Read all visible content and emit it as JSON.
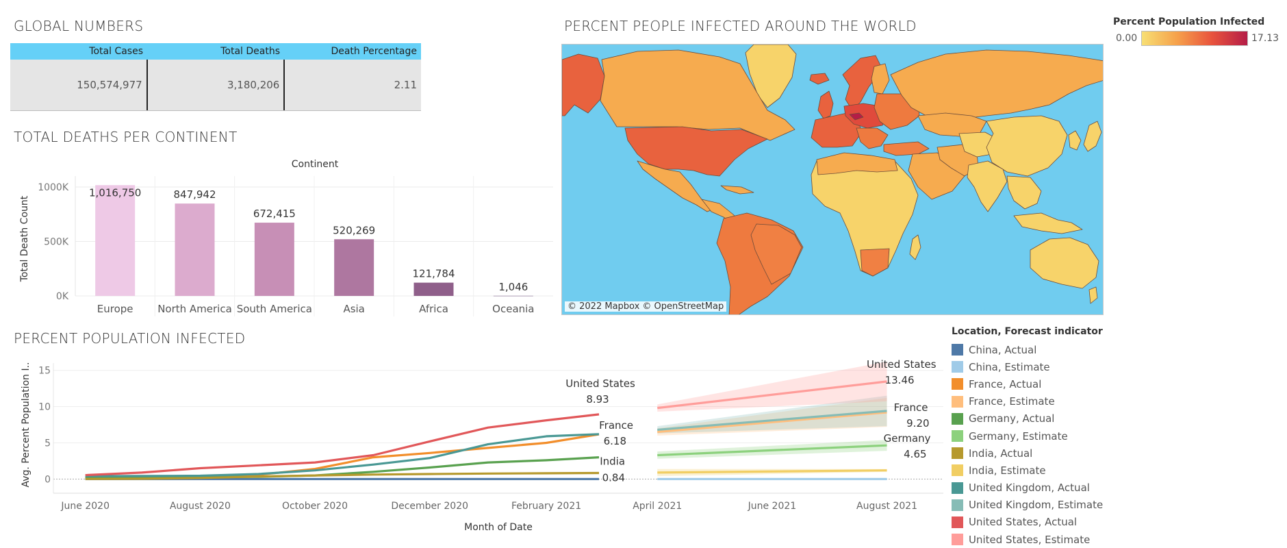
{
  "global": {
    "title": "GLOBAL NUMBERS",
    "headers": [
      "Total Cases",
      "Total Deaths",
      "Death Percentage"
    ],
    "values": [
      "150,574,977",
      "3,180,206",
      "2.11"
    ]
  },
  "deaths_title": "TOTAL DEATHS PER CONTINENT",
  "ppi_title": "PERCENT POPULATION INFECTED",
  "world": {
    "title": "PERCENT PEOPLE INFECTED AROUND THE WORLD",
    "attribution": "© 2022 Mapbox © OpenStreetMap",
    "legend_title": "Percent Population Infected",
    "legend_min": "0.00",
    "legend_max": "17.13",
    "colors": {
      "ocean": "#70ccef",
      "low": "#f7df74",
      "mid": "#f6a14b",
      "high": "#e8533d",
      "max": "#b51d47"
    }
  },
  "chart_data": [
    {
      "type": "bar",
      "title": "",
      "column_header": "Continent",
      "ylabel": "Total Death Count",
      "categories": [
        "Europe",
        "North America",
        "South America",
        "Asia",
        "Africa",
        "Oceania"
      ],
      "values": [
        1016750,
        847942,
        672415,
        520269,
        121784,
        1046
      ],
      "labels": [
        "1,016,750",
        "847,942",
        "672,415",
        "520,269",
        "121,784",
        "1,046"
      ],
      "colors": [
        "#eec9e6",
        "#dcabce",
        "#c78fb6",
        "#ae77a0",
        "#8f5f8a",
        "#6f4f7c"
      ],
      "ylim": [
        0,
        1050000
      ],
      "yticks": [
        {
          "v": 0,
          "t": "0K"
        },
        {
          "v": 500000,
          "t": "500K"
        },
        {
          "v": 1000000,
          "t": "1000K"
        }
      ],
      "grid": true
    },
    {
      "type": "line",
      "title": "",
      "xlabel": "Month of Date",
      "ylabel": "Avg. Percent Population I..",
      "xlim": [
        "2020-05-15",
        "2021-08-31"
      ],
      "ylim": [
        -1,
        16
      ],
      "yticks": [
        0,
        5,
        10,
        15
      ],
      "xticks": [
        {
          "d": "2020-06-01",
          "t": "June 2020"
        },
        {
          "d": "2020-08-01",
          "t": "August 2020"
        },
        {
          "d": "2020-10-01",
          "t": "October 2020"
        },
        {
          "d": "2020-12-01",
          "t": "December 2020"
        },
        {
          "d": "2021-02-01",
          "t": "February 2021"
        },
        {
          "d": "2021-04-01",
          "t": "April 2021"
        },
        {
          "d": "2021-06-01",
          "t": "June 2021"
        },
        {
          "d": "2021-08-01",
          "t": "August 2021"
        }
      ],
      "x": [
        "2020-06-01",
        "2020-07-01",
        "2020-08-01",
        "2020-09-01",
        "2020-10-01",
        "2020-11-01",
        "2020-12-01",
        "2021-01-01",
        "2021-02-01",
        "2021-03-01"
      ],
      "series": [
        {
          "name": "China, Actual",
          "color": "#4e79a7",
          "values": [
            0.01,
            0.01,
            0.01,
            0.01,
            0.01,
            0.01,
            0.01,
            0.01,
            0.01,
            0.01
          ]
        },
        {
          "name": "France, Actual",
          "color": "#f28e2b",
          "values": [
            0.25,
            0.28,
            0.35,
            0.6,
            1.4,
            3.0,
            3.6,
            4.3,
            5.0,
            6.18
          ]
        },
        {
          "name": "Germany, Actual",
          "color": "#59a14f",
          "values": [
            0.22,
            0.24,
            0.27,
            0.32,
            0.5,
            1.0,
            1.6,
            2.3,
            2.6,
            3.0
          ]
        },
        {
          "name": "India, Actual",
          "color": "#b6992d",
          "values": [
            0.02,
            0.05,
            0.15,
            0.35,
            0.5,
            0.62,
            0.7,
            0.77,
            0.8,
            0.84
          ]
        },
        {
          "name": "United Kingdom, Actual",
          "color": "#499894",
          "values": [
            0.41,
            0.43,
            0.46,
            0.7,
            1.2,
            2.0,
            2.9,
            4.8,
            5.9,
            6.2
          ]
        },
        {
          "name": "United States, Actual",
          "color": "#e15759",
          "values": [
            0.55,
            0.9,
            1.5,
            1.9,
            2.3,
            3.3,
            5.2,
            7.1,
            8.1,
            8.93
          ]
        }
      ],
      "forecast_x": [
        "2021-04-01",
        "2021-08-01"
      ],
      "forecasts": [
        {
          "name": "China, Estimate",
          "color": "#a0cbe8",
          "start": 0.01,
          "end": 0.01,
          "lo_end": 0.01,
          "hi_end": 0.01
        },
        {
          "name": "France, Estimate",
          "color": "#ffbe7d",
          "start": 6.5,
          "end": 9.2,
          "lo_end": 7.2,
          "hi_end": 11.2
        },
        {
          "name": "Germany, Estimate",
          "color": "#8cd17d",
          "start": 3.3,
          "end": 4.65,
          "lo_end": 3.9,
          "hi_end": 5.4
        },
        {
          "name": "India, Estimate",
          "color": "#f1ce63",
          "start": 0.9,
          "end": 1.2,
          "lo_end": 1.0,
          "hi_end": 1.4
        },
        {
          "name": "United Kingdom, Estimate",
          "color": "#86bcb6",
          "start": 6.8,
          "end": 9.4,
          "lo_end": 7.4,
          "hi_end": 11.5
        },
        {
          "name": "United States, Estimate",
          "color": "#ff9d9a",
          "start": 9.8,
          "end": 13.46,
          "lo_end": 11.0,
          "hi_end": 16.2
        }
      ],
      "labels": [
        {
          "name": "United States",
          "value": "8.93",
          "d": "2021-03-01",
          "y": 8.93
        },
        {
          "name": "France",
          "value": "6.18",
          "d": "2021-03-01",
          "y": 6.18
        },
        {
          "name": "India",
          "value": "0.84",
          "d": "2021-03-01",
          "y": 0.84
        },
        {
          "name": "United States",
          "value": "13.46",
          "d": "2021-08-01",
          "y": 13.46
        },
        {
          "name": "France",
          "value": "9.20",
          "d": "2021-08-01",
          "y": 9.2
        },
        {
          "name": "Germany",
          "value": "4.65",
          "d": "2021-08-01",
          "y": 4.65
        }
      ],
      "legend": {
        "title": "Location, Forecast indicator",
        "items": [
          {
            "label": "China, Actual",
            "color": "#4e79a7"
          },
          {
            "label": "China, Estimate",
            "color": "#a0cbe8"
          },
          {
            "label": "France, Actual",
            "color": "#f28e2b"
          },
          {
            "label": "France, Estimate",
            "color": "#ffbe7d"
          },
          {
            "label": "Germany, Actual",
            "color": "#59a14f"
          },
          {
            "label": "Germany, Estimate",
            "color": "#8cd17d"
          },
          {
            "label": "India, Actual",
            "color": "#b6992d"
          },
          {
            "label": "India, Estimate",
            "color": "#f1ce63"
          },
          {
            "label": "United Kingdom, Actual",
            "color": "#499894"
          },
          {
            "label": "United Kingdom, Estimate",
            "color": "#86bcb6"
          },
          {
            "label": "United States, Actual",
            "color": "#e15759"
          },
          {
            "label": "United States, Estimate",
            "color": "#ff9d9a"
          }
        ]
      }
    }
  ]
}
